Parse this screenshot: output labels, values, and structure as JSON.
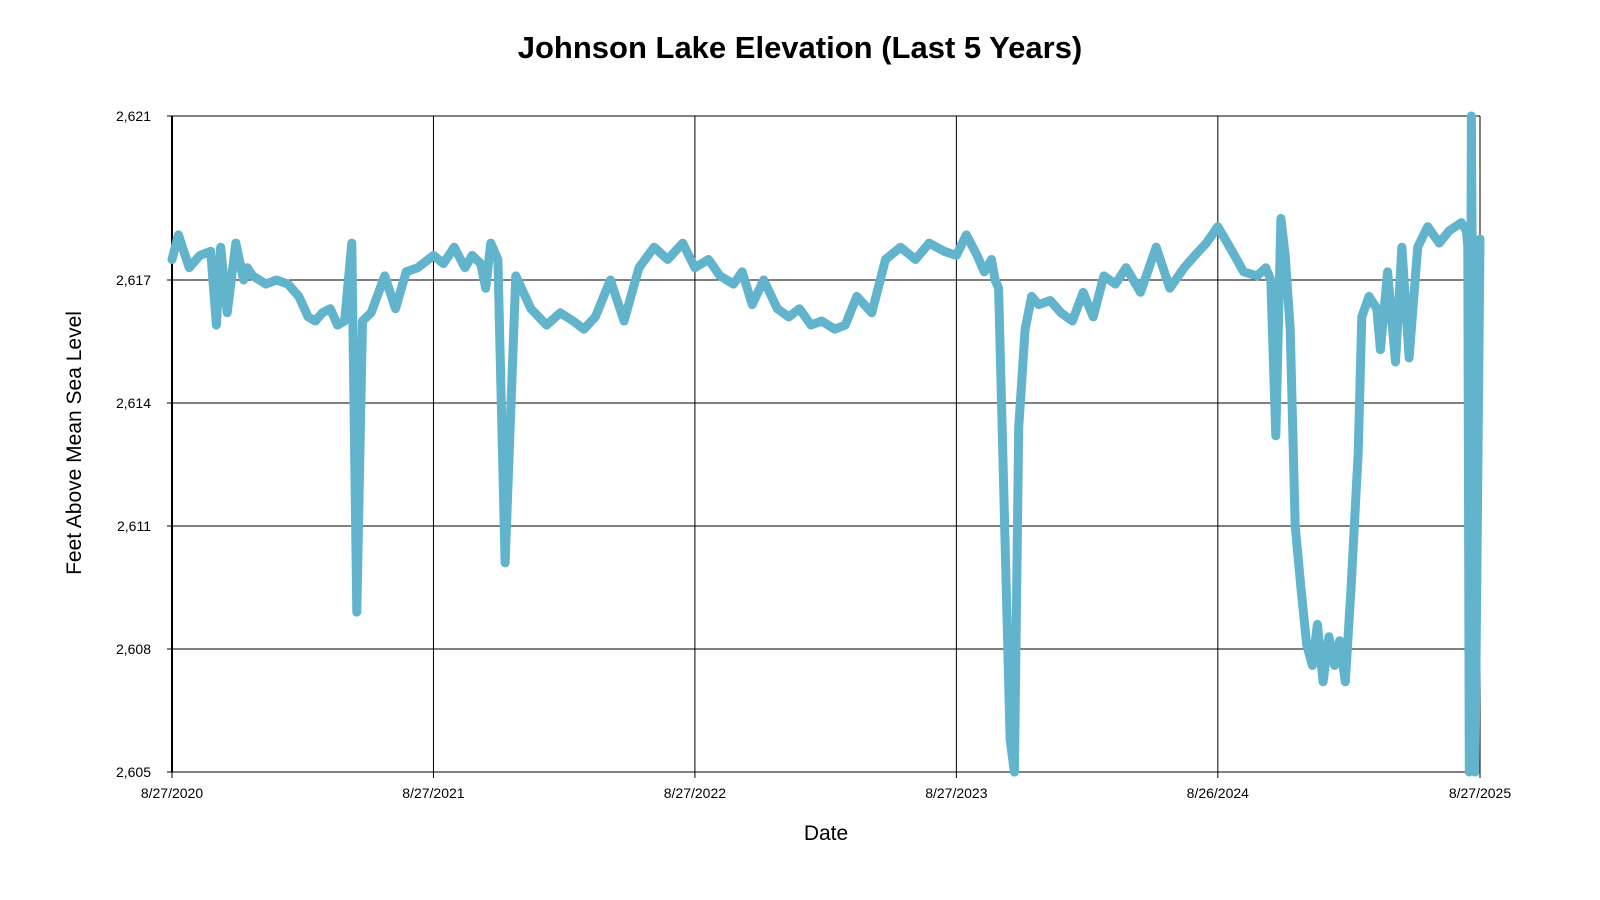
{
  "chart_data": {
    "type": "line",
    "title": "Johnson Lake Elevation (Last 5 Years)",
    "xlabel": "Date",
    "ylabel": "Feet Above Mean Sea Level",
    "ylim": [
      2605,
      2621
    ],
    "y_ticks": [
      "2,605",
      "2,608",
      "2,611",
      "2,614",
      "2,617",
      "2,621"
    ],
    "y_tick_values": [
      2605,
      2608,
      2611,
      2614,
      2617,
      2621
    ],
    "x_ticks": [
      "8/27/2020",
      "8/27/2021",
      "8/27/2022",
      "8/27/2023",
      "8/26/2024",
      "8/27/2025"
    ],
    "x_tick_dates": [
      "2020-08-27",
      "2021-08-27",
      "2022-08-27",
      "2023-08-27",
      "2024-08-26",
      "2025-08-27"
    ],
    "xlim": [
      "2020-08-27",
      "2025-08-27"
    ],
    "grid": true,
    "color": "#62b4cc",
    "series": [
      {
        "x": [
          "2020-08-27",
          "2020-09-05",
          "2020-09-20",
          "2020-10-05",
          "2020-10-20",
          "2020-10-28",
          "2020-11-03",
          "2020-11-12",
          "2020-11-24",
          "2020-12-05",
          "2020-12-10",
          "2020-12-18",
          "2021-01-05",
          "2021-01-20",
          "2021-02-05",
          "2021-02-20",
          "2021-03-05",
          "2021-03-15",
          "2021-03-25",
          "2021-04-05",
          "2021-04-15",
          "2021-04-25",
          "2021-05-05",
          "2021-05-12",
          "2021-05-20",
          "2021-06-01",
          "2021-06-20",
          "2021-07-05",
          "2021-07-20",
          "2021-08-05",
          "2021-08-27",
          "2021-09-10",
          "2021-09-25",
          "2021-10-10",
          "2021-10-20",
          "2021-11-01",
          "2021-11-08",
          "2021-11-15",
          "2021-11-25",
          "2021-12-05",
          "2021-12-20",
          "2022-01-10",
          "2022-02-01",
          "2022-02-20",
          "2022-03-10",
          "2022-03-25",
          "2022-04-10",
          "2022-05-01",
          "2022-05-20",
          "2022-06-10",
          "2022-07-01",
          "2022-07-20",
          "2022-08-10",
          "2022-08-27",
          "2022-09-15",
          "2022-10-01",
          "2022-10-20",
          "2022-11-01",
          "2022-11-15",
          "2022-12-01",
          "2022-12-20",
          "2023-01-05",
          "2023-01-20",
          "2023-02-05",
          "2023-02-20",
          "2023-03-10",
          "2023-03-25",
          "2023-04-10",
          "2023-05-01",
          "2023-05-20",
          "2023-06-10",
          "2023-07-01",
          "2023-07-20",
          "2023-08-10",
          "2023-08-27",
          "2023-09-10",
          "2023-09-25",
          "2023-10-05",
          "2023-10-15",
          "2023-10-20",
          "2023-10-25",
          "2023-11-10",
          "2023-11-16",
          "2023-11-22",
          "2023-12-01",
          "2023-12-10",
          "2023-12-20",
          "2024-01-05",
          "2024-01-20",
          "2024-02-05",
          "2024-02-20",
          "2024-03-05",
          "2024-03-20",
          "2024-04-05",
          "2024-04-20",
          "2024-05-10",
          "2024-06-01",
          "2024-06-20",
          "2024-07-10",
          "2024-07-25",
          "2024-08-10",
          "2024-08-26",
          "2024-09-15",
          "2024-10-01",
          "2024-10-20",
          "2024-11-01",
          "2024-11-08",
          "2024-11-15",
          "2024-11-22",
          "2024-11-28",
          "2024-12-05",
          "2024-12-12",
          "2024-12-20",
          "2024-12-28",
          "2025-01-05",
          "2025-01-12",
          "2025-01-20",
          "2025-01-28",
          "2025-02-05",
          "2025-02-12",
          "2025-02-20",
          "2025-02-28",
          "2025-03-10",
          "2025-03-15",
          "2025-03-25",
          "2025-04-05",
          "2025-04-10",
          "2025-04-20",
          "2025-05-01",
          "2025-05-10",
          "2025-05-20",
          "2025-06-01",
          "2025-06-15",
          "2025-07-01",
          "2025-07-15",
          "2025-08-01",
          "2025-08-08",
          "2025-08-10",
          "2025-08-12",
          "2025-08-15",
          "2025-08-20",
          "2025-08-27"
        ],
        "y": [
          2617.5,
          2618.1,
          2617.3,
          2617.6,
          2617.7,
          2615.9,
          2617.8,
          2616.2,
          2617.9,
          2617.0,
          2617.3,
          2617.1,
          2616.9,
          2617.0,
          2616.9,
          2616.6,
          2616.1,
          2616.0,
          2616.2,
          2616.3,
          2615.9,
          2616.0,
          2617.9,
          2608.9,
          2616.0,
          2616.2,
          2617.1,
          2616.3,
          2617.2,
          2617.3,
          2617.6,
          2617.4,
          2617.8,
          2617.3,
          2617.6,
          2617.4,
          2616.8,
          2617.9,
          2617.5,
          2610.1,
          2617.1,
          2616.3,
          2615.9,
          2616.2,
          2616.0,
          2615.8,
          2616.1,
          2617.0,
          2616.0,
          2617.3,
          2617.8,
          2617.5,
          2617.9,
          2617.3,
          2617.5,
          2617.1,
          2616.9,
          2617.2,
          2616.4,
          2617.0,
          2616.3,
          2616.1,
          2616.3,
          2615.9,
          2616.0,
          2615.8,
          2615.9,
          2616.6,
          2616.2,
          2617.5,
          2617.8,
          2617.5,
          2617.9,
          2617.7,
          2617.6,
          2618.1,
          2617.6,
          2617.2,
          2617.5,
          2617.0,
          2616.8,
          2605.8,
          2605.0,
          2613.4,
          2615.8,
          2616.6,
          2616.4,
          2616.5,
          2616.2,
          2616.0,
          2616.7,
          2616.1,
          2617.1,
          2616.9,
          2617.3,
          2616.7,
          2617.8,
          2616.8,
          2617.3,
          2617.6,
          2617.9,
          2618.3,
          2617.7,
          2617.2,
          2617.1,
          2617.3,
          2617.0,
          2613.2,
          2618.5,
          2617.6,
          2615.8,
          2611.0,
          2609.5,
          2608.1,
          2607.6,
          2608.6,
          2607.2,
          2608.3,
          2607.6,
          2608.2,
          2607.2,
          2609.5,
          2612.8,
          2616.1,
          2616.6,
          2616.3,
          2615.3,
          2617.2,
          2615.0,
          2617.8,
          2615.1,
          2617.8,
          2618.3,
          2617.9,
          2618.2,
          2618.4,
          2618.2,
          2617.8,
          2605.0,
          2621.0,
          2605.0,
          2618.0
        ]
      }
    ]
  }
}
